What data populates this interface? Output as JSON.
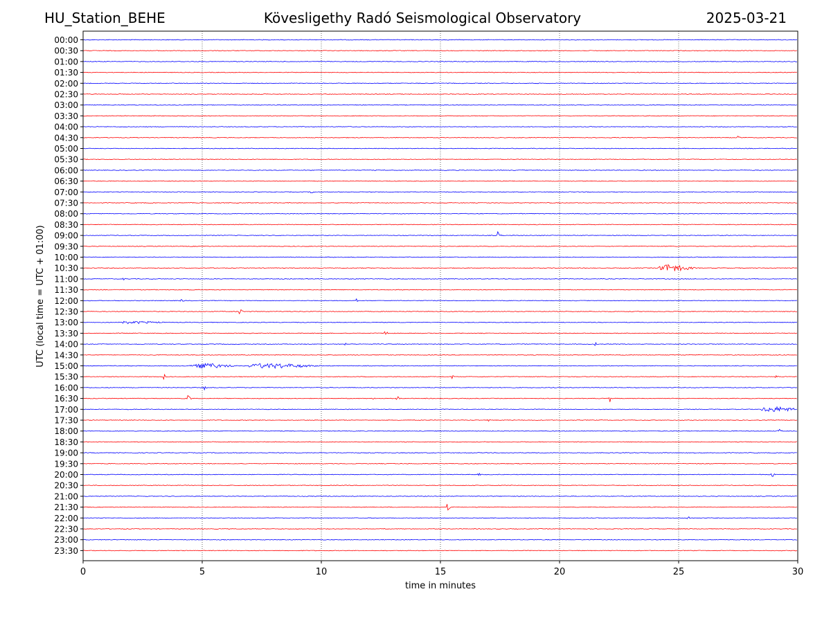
{
  "chart_data": {
    "type": "line",
    "title_left": "HU_Station_BEHE",
    "title": "Kövesligethy Radó Seismological Observatory",
    "title_right": "2025-03-21",
    "xlabel": "time in minutes",
    "ylabel": "UTC (local time = UTC + 01:00)",
    "xlim": [
      0,
      30
    ],
    "x_ticks": [
      0,
      5,
      10,
      15,
      20,
      25,
      30
    ],
    "x_grid": "dotted vertical lines at 5, 10, 15, 20, 25",
    "colors": [
      "#0000ff",
      "#ff0000"
    ],
    "color_pattern": "traces alternate blue and red; mostly blue on the hour and red on the half hour",
    "rows": [
      {
        "label": "00:00",
        "color": "#0000ff",
        "events": []
      },
      {
        "label": "00:30",
        "color": "#ff0000",
        "events": []
      },
      {
        "label": "01:00",
        "color": "#0000ff",
        "events": []
      },
      {
        "label": "01:30",
        "color": "#ff0000",
        "events": []
      },
      {
        "label": "02:00",
        "color": "#0000ff",
        "events": []
      },
      {
        "label": "02:30",
        "color": "#ff0000",
        "events": []
      },
      {
        "label": "03:00",
        "color": "#0000ff",
        "events": []
      },
      {
        "label": "03:30",
        "color": "#ff0000",
        "events": []
      },
      {
        "label": "04:00",
        "color": "#0000ff",
        "events": []
      },
      {
        "label": "04:30",
        "color": "#ff0000",
        "events": [
          {
            "t": 27.5,
            "a": 0.3
          }
        ]
      },
      {
        "label": "05:00",
        "color": "#0000ff",
        "events": []
      },
      {
        "label": "05:30",
        "color": "#ff0000",
        "events": []
      },
      {
        "label": "06:00",
        "color": "#0000ff",
        "events": []
      },
      {
        "label": "06:30",
        "color": "#ff0000",
        "events": []
      },
      {
        "label": "07:00",
        "color": "#0000ff",
        "events": [
          {
            "t": 9.6,
            "a": 0.4
          }
        ]
      },
      {
        "label": "07:30",
        "color": "#ff0000",
        "events": []
      },
      {
        "label": "08:00",
        "color": "#0000ff",
        "events": []
      },
      {
        "label": "08:30",
        "color": "#ff0000",
        "events": []
      },
      {
        "label": "09:00",
        "color": "#0000ff",
        "events": [
          {
            "t": 17.4,
            "a": 0.8
          }
        ]
      },
      {
        "label": "09:30",
        "color": "#ff0000",
        "events": []
      },
      {
        "label": "10:00",
        "color": "#0000ff",
        "events": []
      },
      {
        "label": "10:30",
        "color": "#ff0000",
        "events": [
          {
            "t": 24.2,
            "a": 0.6,
            "d": 1.5
          }
        ]
      },
      {
        "label": "11:00",
        "color": "#0000ff",
        "events": [
          {
            "t": 1.7,
            "a": 0.3
          }
        ]
      },
      {
        "label": "11:30",
        "color": "#ff0000",
        "events": []
      },
      {
        "label": "12:00",
        "color": "#0000ff",
        "events": [
          {
            "t": 4.1,
            "a": 0.4
          },
          {
            "t": 11.5,
            "a": 0.4
          }
        ]
      },
      {
        "label": "12:30",
        "color": "#ff0000",
        "events": [
          {
            "t": 6.6,
            "a": 0.8
          }
        ]
      },
      {
        "label": "13:00",
        "color": "#0000ff",
        "events": [
          {
            "t": 1.5,
            "a": 0.2,
            "d": 2.0
          }
        ]
      },
      {
        "label": "13:30",
        "color": "#ff0000",
        "events": [
          {
            "t": 12.7,
            "a": 0.6
          }
        ]
      },
      {
        "label": "14:00",
        "color": "#0000ff",
        "events": [
          {
            "t": 11.0,
            "a": 0.3
          },
          {
            "t": 21.5,
            "a": 0.3
          }
        ]
      },
      {
        "label": "14:30",
        "color": "#ff0000",
        "events": []
      },
      {
        "label": "15:00",
        "color": "#0000ff",
        "events": [
          {
            "t": 4.5,
            "a": 0.4,
            "d": 2.0
          },
          {
            "t": 7.0,
            "a": 0.4,
            "d": 3.0
          }
        ]
      },
      {
        "label": "15:30",
        "color": "#ff0000",
        "events": [
          {
            "t": 3.4,
            "a": 0.5
          },
          {
            "t": 15.5,
            "a": 0.3
          },
          {
            "t": 29.1,
            "a": 0.3
          }
        ]
      },
      {
        "label": "16:00",
        "color": "#0000ff",
        "events": [
          {
            "t": 5.1,
            "a": 0.5
          }
        ]
      },
      {
        "label": "16:30",
        "color": "#ff0000",
        "events": [
          {
            "t": 4.4,
            "a": 0.8
          },
          {
            "t": 12.2,
            "a": 0.4
          },
          {
            "t": 13.2,
            "a": 0.4
          },
          {
            "t": 22.1,
            "a": 0.8
          }
        ]
      },
      {
        "label": "17:00",
        "color": "#0000ff",
        "events": [
          {
            "t": 1.9,
            "a": 0.4
          },
          {
            "t": 28.5,
            "a": 0.4,
            "d": 1.8
          }
        ]
      },
      {
        "label": "17:30",
        "color": "#ff0000",
        "events": [
          {
            "t": 17.0,
            "a": 0.4
          }
        ]
      },
      {
        "label": "18:00",
        "color": "#0000ff",
        "events": [
          {
            "t": 29.2,
            "a": 0.5
          }
        ]
      },
      {
        "label": "18:30",
        "color": "#ff0000",
        "events": []
      },
      {
        "label": "19:00",
        "color": "#0000ff",
        "events": []
      },
      {
        "label": "19:30",
        "color": "#ff0000",
        "events": []
      },
      {
        "label": "20:00",
        "color": "#0000ff",
        "events": [
          {
            "t": 16.6,
            "a": 0.3
          },
          {
            "t": 28.9,
            "a": 0.8
          }
        ]
      },
      {
        "label": "20:30",
        "color": "#ff0000",
        "events": []
      },
      {
        "label": "21:00",
        "color": "#0000ff",
        "events": []
      },
      {
        "label": "21:30",
        "color": "#ff0000",
        "events": [
          {
            "t": 15.3,
            "a": 0.8
          }
        ]
      },
      {
        "label": "22:00",
        "color": "#0000ff",
        "events": [
          {
            "t": 25.4,
            "a": 0.5
          }
        ]
      },
      {
        "label": "22:30",
        "color": "#ff0000",
        "events": []
      },
      {
        "label": "23:00",
        "color": "#0000ff",
        "events": []
      },
      {
        "label": "23:30",
        "color": "#ff0000",
        "events": []
      }
    ]
  }
}
